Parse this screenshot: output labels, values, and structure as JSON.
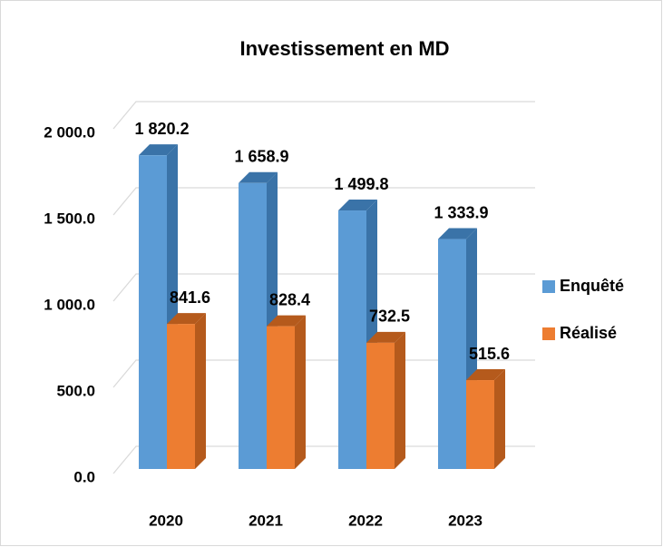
{
  "chart_data": {
    "type": "bar3d",
    "title": "Investissement en MD",
    "categories": [
      "2020",
      "2021",
      "2022",
      "2023"
    ],
    "series": [
      {
        "name": "Enquêté",
        "color": "#5b9bd5",
        "side_color": "#3a73a8",
        "values": [
          1820.2,
          1658.9,
          1499.8,
          1333.9
        ],
        "value_labels": [
          "1 820.2",
          "1 658.9",
          "1 499.8",
          "1 333.9"
        ]
      },
      {
        "name": "Réalisé",
        "color": "#ed7d31",
        "side_color": "#b55a1c",
        "values": [
          841.6,
          828.4,
          732.5,
          515.6
        ],
        "value_labels": [
          "841.6",
          "828.4",
          "732.5",
          "515.6"
        ]
      }
    ],
    "ylim": [
      0,
      2000
    ],
    "yticks": [
      {
        "value": 0,
        "label": "0.0"
      },
      {
        "value": 500,
        "label": "500.0"
      },
      {
        "value": 1000,
        "label": "1 000.0"
      },
      {
        "value": 1500,
        "label": "1 500.0"
      },
      {
        "value": 2000,
        "label": "2 000.0"
      }
    ],
    "grid": true,
    "legend": "right"
  }
}
